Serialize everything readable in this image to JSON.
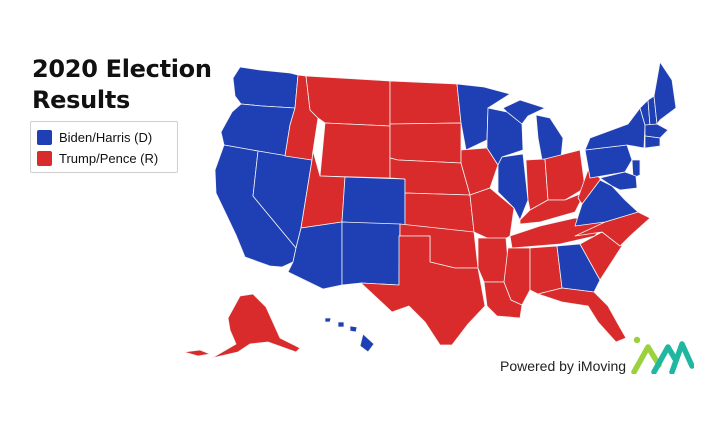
{
  "title": {
    "line1": "2020 Election",
    "line2": "Results"
  },
  "legend": {
    "items": [
      {
        "label": "Biden/Harris (D)",
        "color": "#1f3fb4"
      },
      {
        "label": "Trump/Pence (R)",
        "color": "#d92b2b"
      }
    ]
  },
  "credit": {
    "text": "Powered by iMoving",
    "logo_icon": "imoving-logo-icon",
    "logo_colors": [
      "#9bd13c",
      "#1fb7a1"
    ]
  },
  "colors": {
    "democrat": "#1f3fb4",
    "republican": "#d92b2b",
    "border": "#f2f2f2"
  }
}
